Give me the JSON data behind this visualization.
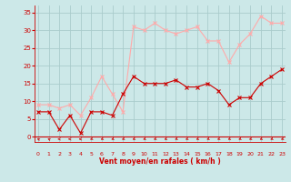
{
  "hours": [
    0,
    1,
    2,
    3,
    4,
    5,
    6,
    7,
    8,
    9,
    10,
    11,
    12,
    13,
    14,
    15,
    16,
    17,
    18,
    19,
    20,
    21,
    22,
    23
  ],
  "vent_moyen": [
    7,
    7,
    2,
    6,
    1,
    7,
    7,
    6,
    12,
    17,
    15,
    15,
    15,
    16,
    14,
    14,
    15,
    13,
    9,
    11,
    11,
    15,
    17,
    19
  ],
  "rafales": [
    9,
    9,
    8,
    9,
    6,
    11,
    17,
    12,
    7,
    31,
    30,
    32,
    30,
    29,
    30,
    31,
    27,
    27,
    21,
    26,
    29,
    34,
    32,
    32
  ],
  "bg_color": "#cce8e8",
  "grid_color": "#aacccc",
  "line_moyen_color": "#cc0000",
  "line_rafales_color": "#ffaaaa",
  "xlabel": "Vent moyen/en rafales ( km/h )",
  "xlabel_color": "#cc0000",
  "ylabel_ticks": [
    0,
    5,
    10,
    15,
    20,
    25,
    30,
    35
  ],
  "ylim": [
    -1.5,
    37
  ],
  "xlim": [
    -0.3,
    23.3
  ],
  "wind_arrows": [
    225,
    225,
    270,
    270,
    270,
    315,
    315,
    315,
    315,
    315,
    315,
    315,
    315,
    315,
    315,
    315,
    315,
    315,
    315,
    315,
    315,
    315,
    315,
    315
  ]
}
